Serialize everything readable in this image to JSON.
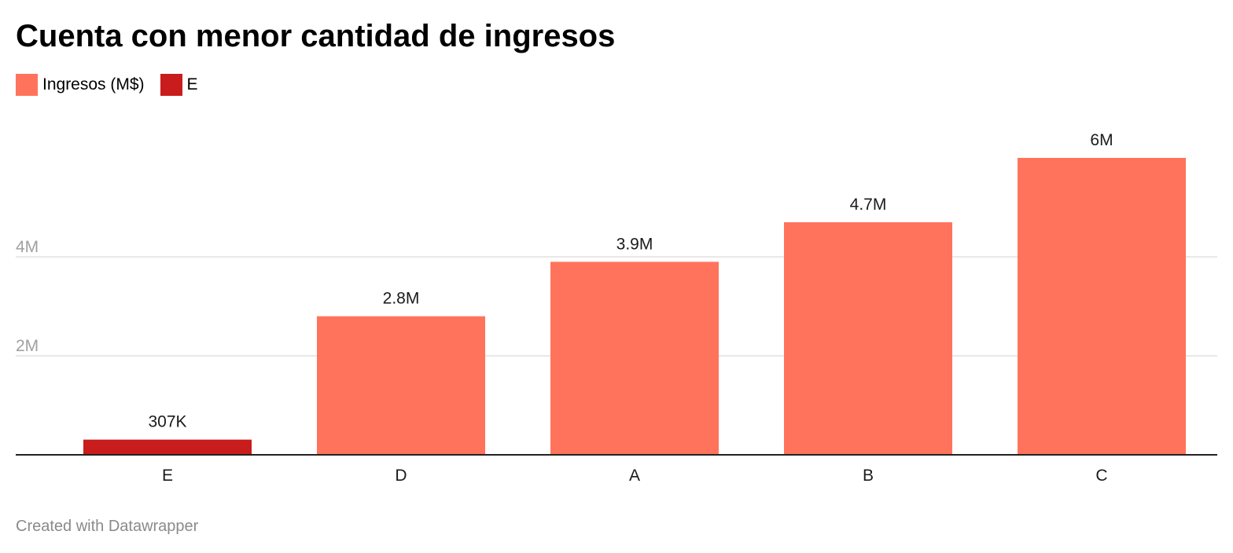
{
  "title": "Cuenta con menor cantidad de ingresos",
  "legend": [
    {
      "label": "Ingresos (M$)",
      "color": "#ff735c"
    },
    {
      "label": "E",
      "color": "#c91c1c"
    }
  ],
  "footer": "Created with Datawrapper",
  "chart_data": {
    "type": "bar",
    "categories": [
      "E",
      "D",
      "A",
      "B",
      "C"
    ],
    "values": [
      307000,
      2800000,
      3900000,
      4700000,
      6000000
    ],
    "value_labels": [
      "307K",
      "2.8M",
      "3.9M",
      "4.7M",
      "6M"
    ],
    "series": [
      {
        "name": "Ingresos (M$)",
        "values": [
          307000,
          2800000,
          3900000,
          4700000,
          6000000
        ]
      }
    ],
    "highlight": {
      "category": "E",
      "color": "#c91c1c"
    },
    "bar_color": "#ff735c",
    "yticks": [
      {
        "value": 2000000,
        "label": "2M"
      },
      {
        "value": 4000000,
        "label": "4M"
      }
    ],
    "ylim": [
      0,
      6000000
    ],
    "grid": true,
    "legend_position": "top-left",
    "title": "Cuenta con menor cantidad de ingresos",
    "xlabel": "",
    "ylabel": ""
  }
}
